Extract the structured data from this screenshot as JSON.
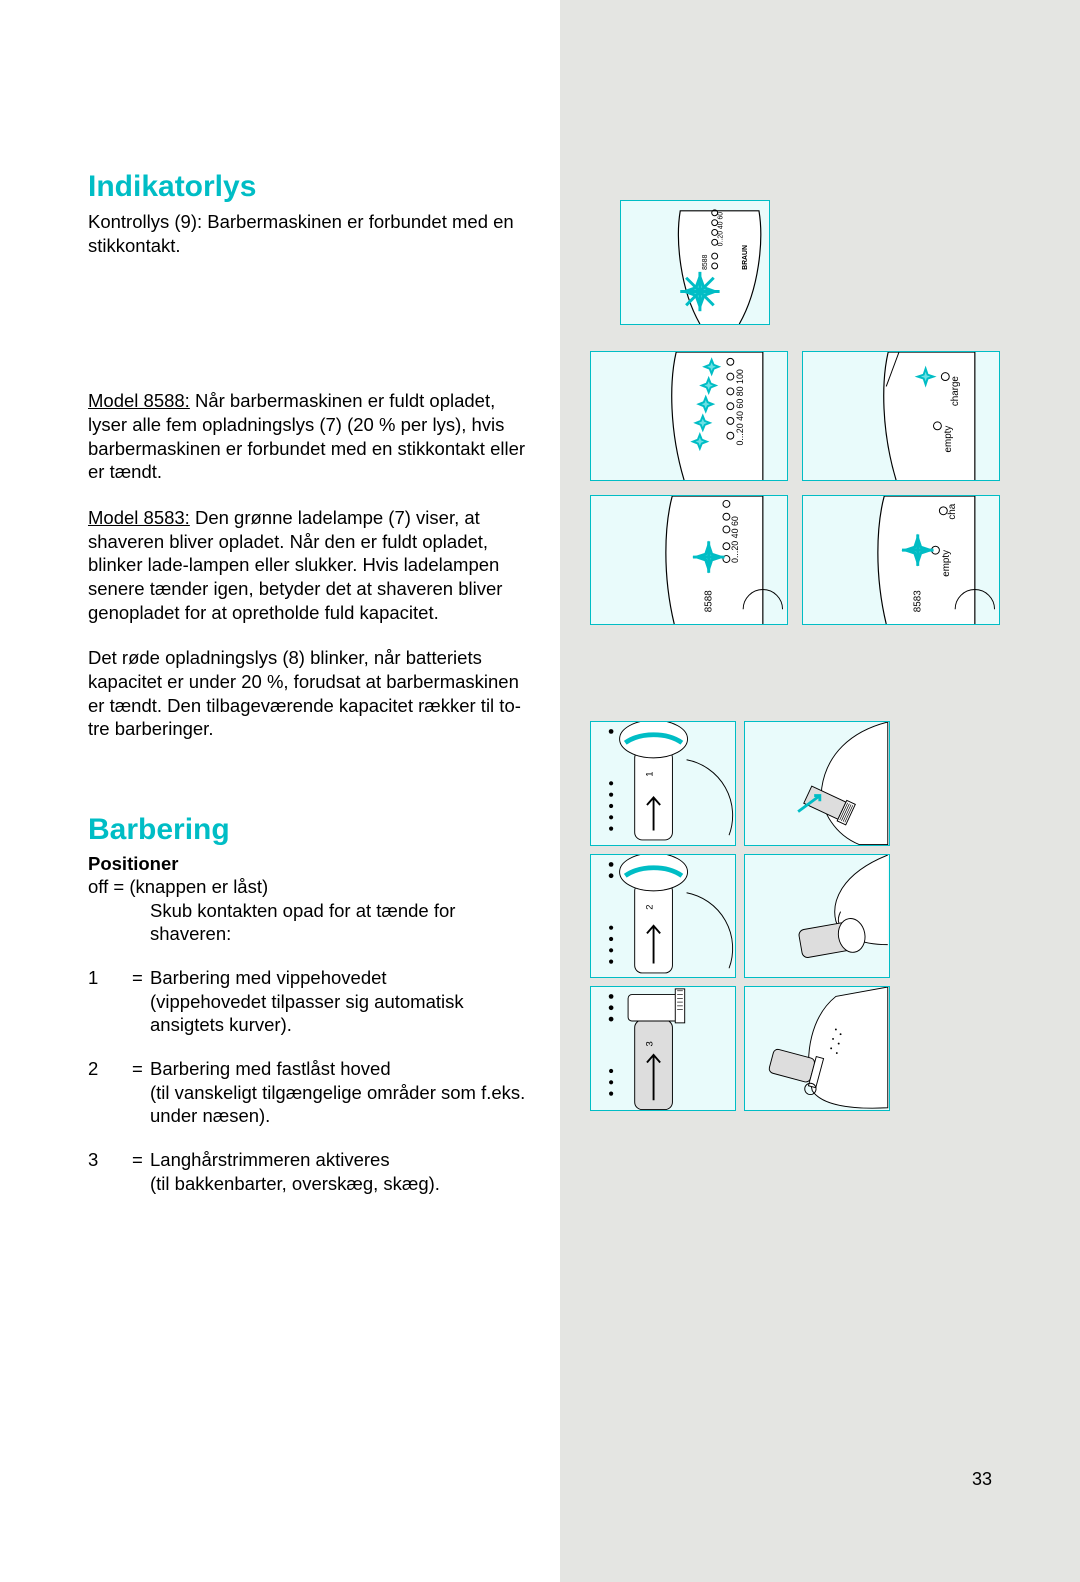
{
  "page_number": "33",
  "section1": {
    "heading": "Indikatorlys",
    "p1": "Kontrollys (9): Barbermaskinen er forbundet med en stikkontakt.",
    "p2_model": "Model 8588:",
    "p2_body": " Når barbermaskinen er fuldt opladet, lyser alle fem opladningslys (7) (20 % per lys), hvis barbermaskinen er forbundet med en stikkontakt eller er tændt.",
    "p3_model": "Model 8583:",
    "p3_body": "  Den grønne ladelampe (7) viser, at shaveren bliver opladet. Når den er fuldt opladet, blinker lade-lampen eller slukker. Hvis ladelampen senere tænder igen, betyder det at shaveren bliver genopladet for at opretholde fuld kapacitet.",
    "p4": "Det røde opladningslys (8) blinker, når batteriets kapacitet er under 20 %, forudsat at barbermaskinen er tændt. Den tilbageværende kapacitet rækker til to-tre barberinger."
  },
  "section2": {
    "heading": "Barbering",
    "subhead": "Positioner",
    "off_line": "off  = (knappen er låst)",
    "off_line2": "Skub kontakten opad for at tænde for shaveren:",
    "rows": [
      {
        "key": "1",
        "val": "Barbering med vippehovedet\n(vippehovedet tilpasser sig automatisk ansigtets kurver)."
      },
      {
        "key": "2",
        "val": "Barbering med fastlåst hoved\n(til vanskeligt tilgængelige områder som f.eks. under næsen)."
      },
      {
        "key": "3",
        "val": "Langhårstrimmeren aktiveres\n(til bakkenbarter, overskæg, skæg)."
      }
    ]
  },
  "illus": {
    "top_scale": "0...20 40 60",
    "top_model": "8588",
    "brand": "BRAUN",
    "mid_left_scale": "0...20 40 60 80 100",
    "mid_right_empty": "empty",
    "mid_right_charge": "charge",
    "low_left_scale": "0...20 40 60",
    "low_left_model": "8588",
    "low_right_cha": "cha",
    "low_right_empty": "empty",
    "low_right_model": "8583",
    "colors": {
      "panel_border": "#00bdc5",
      "panel_bg": "#e9fbfb",
      "side_bg": "#e4e5e2",
      "cyan_line": "#00bdc5",
      "cyan_fill": "#6be1e5"
    }
  }
}
